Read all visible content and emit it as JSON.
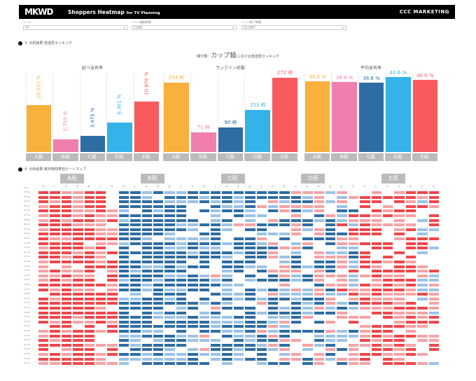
{
  "header": {
    "logo": "MKWD",
    "title": "Shoppers Heatmap",
    "title_sub": "for TV Planning",
    "brand": "CCC MARKETING"
  },
  "filters": [
    {
      "label": "ゾーン",
      "value": "TV"
    },
    {
      "label": "ゾーン開始時間",
      "value": "5:00PL"
    },
    {
      "label": "ゾーン終了時間",
      "value": "25:59PT"
    }
  ],
  "section1": {
    "label": "3. 分析結果 放送局ランキング",
    "subtitle_prefix": "細分類：",
    "category": "カップ麺",
    "subtitle_suffix": "における放送局ランキング"
  },
  "colors": {
    "A": "#f8b13d",
    "B": "#f07fae",
    "C": "#2e6da4",
    "D": "#33b3e8",
    "E": "#f85a5e",
    "cold": "#2e6da4",
    "hot": "#f0474b"
  },
  "stations": [
    "A局",
    "B局",
    "C局",
    "D局",
    "E局"
  ],
  "chart_data": [
    {
      "type": "bar",
      "title": "延べ含有率",
      "categories": [
        "A局",
        "B局",
        "C局",
        "D局",
        "E局"
      ],
      "values": [
        10031,
        2755,
        3475,
        6361,
        10876
      ],
      "labels": [
        "10,031 %",
        "2,755 %",
        "3,475 %",
        "6,361 %",
        "10,876 %"
      ],
      "ylim": [
        0,
        17000
      ]
    },
    {
      "type": "bar",
      "title": "ランクイン枠数",
      "categories": [
        "A局",
        "B局",
        "C局",
        "D局",
        "E局"
      ],
      "values": [
        254,
        71,
        90,
        153,
        272
      ],
      "labels": [
        "254 枠",
        "71 枠",
        "90 枠",
        "153 枠",
        "272 枠"
      ],
      "ylim": [
        0,
        290
      ]
    },
    {
      "type": "bar",
      "title": "平均含有率",
      "categories": [
        "A局",
        "B局",
        "C局",
        "D局",
        "E局"
      ],
      "values": [
        39.5,
        38.8,
        38.6,
        41.6,
        40.0
      ],
      "labels": [
        "39.5 %",
        "38.8 %",
        "38.6 %",
        "41.6 %",
        "40.0 %"
      ],
      "ylim": [
        0,
        44
      ]
    }
  ],
  "section2": {
    "label": "4. 分析結果 曜日時間帯別ヒートマップ",
    "time_header": "time",
    "days": [
      "月",
      "火",
      "水",
      "木",
      "金",
      "土",
      "日"
    ]
  },
  "heatmap": {
    "station_bias": [
      0.75,
      -0.7,
      -0.45,
      -0.2,
      0.55
    ]
  }
}
